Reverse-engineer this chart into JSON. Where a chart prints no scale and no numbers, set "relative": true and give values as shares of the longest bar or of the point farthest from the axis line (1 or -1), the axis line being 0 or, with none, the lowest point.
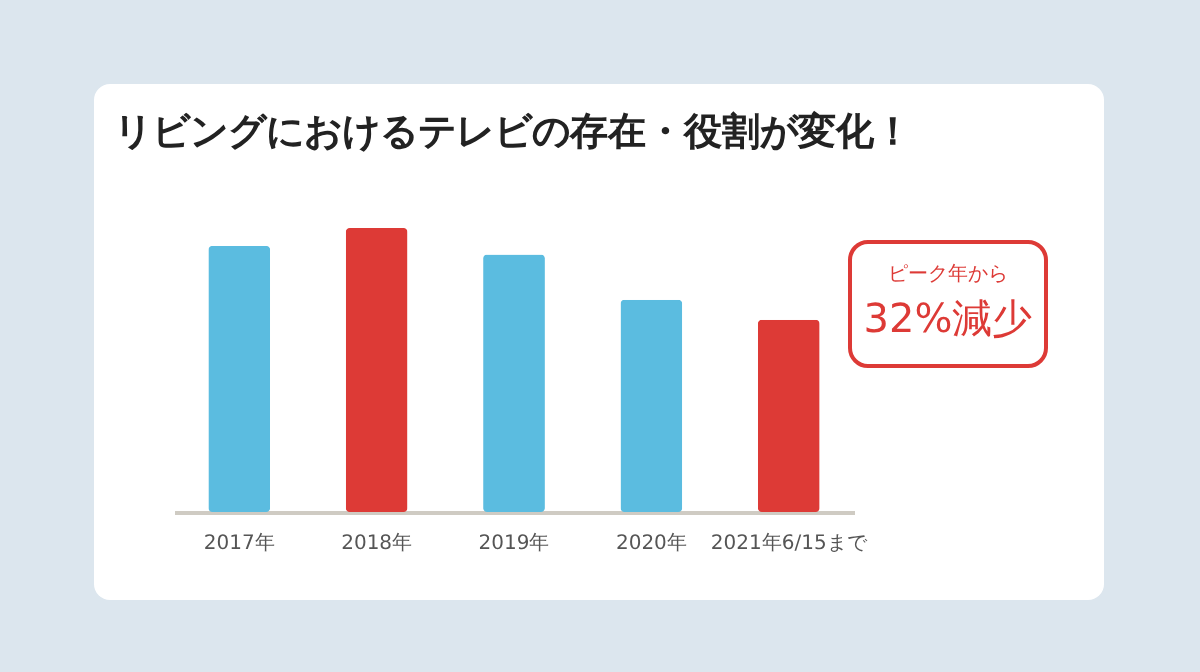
{
  "chart_data": {
    "type": "bar",
    "title": "リビングにおけるテレビの存在・役割が変化！",
    "categories": [
      "2017年",
      "2018年",
      "2019年",
      "2020年",
      "2021年6/15まで"
    ],
    "values": [
      0.937,
      1,
      0.907,
      0.747,
      0.677
    ],
    "colors": [
      "#5bbce0",
      "#dd3a36",
      "#5bbce0",
      "#5bbce0",
      "#dd3a36"
    ],
    "relative": true,
    "annotations": [
      "ピーク年から",
      "32%減少"
    ]
  }
}
